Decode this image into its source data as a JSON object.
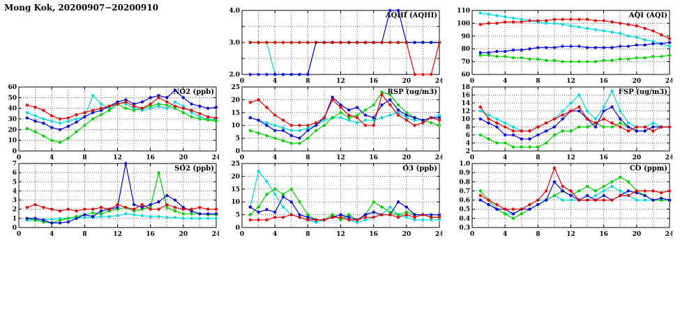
{
  "title": "Mong Kok, 20200907−20200910",
  "hours": [
    1,
    2,
    3,
    4,
    5,
    6,
    7,
    8,
    9,
    10,
    11,
    12,
    13,
    14,
    15,
    16,
    17,
    18,
    19,
    20,
    21,
    22,
    23,
    24
  ],
  "axes": {
    "xlim": [
      0,
      24
    ],
    "xticks": [
      0,
      4,
      8,
      12,
      16,
      20,
      24
    ],
    "x_minor_step": 2
  },
  "colors": {
    "red": "#dd0000",
    "blue": "#0000d0",
    "green": "#00cc00",
    "cyan": "#00d8d8"
  },
  "chart_data": [
    {
      "id": "aqhi",
      "type": "line",
      "title": "AQHI (AQHI)",
      "ylim": [
        2,
        4
      ],
      "yticks": [
        2,
        2.5,
        3,
        3.5,
        4
      ],
      "ytick_labels": [
        "2.0",
        "",
        "3.0",
        "",
        "4.0"
      ],
      "series": [
        {
          "name": "cyan",
          "values": [
            3,
            3,
            3,
            2,
            2,
            2,
            2,
            2,
            3,
            3,
            3,
            3,
            3,
            3,
            3,
            3,
            3,
            3,
            3,
            3,
            3,
            3,
            3,
            3
          ]
        },
        {
          "name": "green",
          "values": [
            3,
            3,
            3,
            3,
            3,
            3,
            3,
            3,
            3,
            3,
            3,
            3,
            3,
            3,
            3,
            3,
            3,
            3,
            3,
            3,
            3,
            3,
            3,
            3
          ]
        },
        {
          "name": "blue",
          "values": [
            2,
            2,
            2,
            2,
            2,
            2,
            2,
            2,
            3,
            3,
            3,
            3,
            3,
            3,
            3,
            3,
            3,
            4,
            4,
            3,
            3,
            3,
            3,
            3
          ]
        },
        {
          "name": "red",
          "values": [
            3,
            3,
            3,
            3,
            3,
            3,
            3,
            3,
            3,
            3,
            3,
            3,
            3,
            3,
            3,
            3,
            3,
            3,
            3,
            3,
            2,
            2,
            2,
            3
          ]
        }
      ]
    },
    {
      "id": "aqi",
      "type": "line",
      "title": "AQI (AQI)",
      "ylim": [
        60,
        110
      ],
      "yticks": [
        60,
        70,
        80,
        90,
        100,
        110
      ],
      "ytick_labels": [
        "60",
        "70",
        "80",
        "90",
        "100",
        "110"
      ],
      "series": [
        {
          "name": "cyan",
          "values": [
            108,
            107,
            106,
            105,
            104,
            103,
            102,
            101,
            100,
            100,
            99,
            98,
            97,
            96,
            95,
            94,
            93,
            92,
            90,
            89,
            87,
            86,
            84,
            82
          ]
        },
        {
          "name": "green",
          "values": [
            75,
            75,
            74,
            74,
            73,
            73,
            72,
            72,
            71,
            71,
            70,
            70,
            70,
            70,
            70,
            71,
            71,
            72,
            72,
            73,
            73,
            74,
            74,
            75
          ]
        },
        {
          "name": "blue",
          "values": [
            77,
            77,
            78,
            78,
            79,
            79,
            80,
            81,
            81,
            81,
            82,
            82,
            82,
            81,
            81,
            81,
            81,
            82,
            82,
            83,
            83,
            84,
            84,
            85
          ]
        },
        {
          "name": "red",
          "values": [
            99,
            100,
            100,
            101,
            101,
            101,
            102,
            102,
            102,
            103,
            103,
            103,
            103,
            103,
            102,
            102,
            101,
            100,
            99,
            98,
            96,
            94,
            91,
            88
          ]
        }
      ]
    },
    {
      "id": "no2",
      "type": "line",
      "title": "NO2 (ppb)",
      "ylim": [
        0,
        60
      ],
      "yticks": [
        0,
        10,
        20,
        30,
        40,
        50,
        60
      ],
      "ytick_labels": [
        "0",
        "10",
        "20",
        "30",
        "40",
        "50",
        "60"
      ],
      "series": [
        {
          "name": "cyan",
          "values": [
            36,
            33,
            30,
            28,
            26,
            28,
            30,
            32,
            52,
            44,
            40,
            45,
            44,
            40,
            38,
            40,
            42,
            40,
            46,
            42,
            36,
            32,
            30,
            29
          ]
        },
        {
          "name": "green",
          "values": [
            21,
            18,
            14,
            10,
            8,
            12,
            18,
            24,
            30,
            34,
            38,
            44,
            40,
            38,
            40,
            42,
            44,
            43,
            40,
            36,
            32,
            30,
            29,
            28
          ]
        },
        {
          "name": "blue",
          "values": [
            31,
            28,
            26,
            22,
            20,
            23,
            27,
            32,
            36,
            38,
            42,
            46,
            48,
            44,
            46,
            50,
            52,
            50,
            57,
            50,
            44,
            42,
            40,
            41
          ]
        },
        {
          "name": "red",
          "values": [
            43,
            41,
            38,
            33,
            30,
            31,
            34,
            36,
            38,
            40,
            42,
            44,
            46,
            42,
            40,
            44,
            50,
            46,
            42,
            40,
            38,
            35,
            32,
            31
          ]
        }
      ]
    },
    {
      "id": "rsp",
      "type": "line",
      "title": "RSP (ug/m3)",
      "ylim": [
        0,
        25
      ],
      "yticks": [
        0,
        5,
        10,
        15,
        20,
        25
      ],
      "ytick_labels": [
        "0",
        "5",
        "10",
        "15",
        "20",
        "25"
      ],
      "series": [
        {
          "name": "cyan",
          "values": [
            13,
            12,
            11,
            10,
            9,
            8,
            8,
            9,
            10,
            12,
            13,
            13,
            12,
            11,
            12,
            12,
            13,
            14,
            15,
            13,
            12,
            12,
            13,
            14
          ]
        },
        {
          "name": "green",
          "values": [
            8,
            7,
            6,
            5,
            4,
            3,
            3,
            5,
            8,
            10,
            13,
            15,
            13,
            14,
            16,
            18,
            23,
            22,
            18,
            15,
            13,
            12,
            11,
            10
          ]
        },
        {
          "name": "blue",
          "values": [
            13,
            12,
            10,
            8,
            8,
            6,
            5,
            8,
            10,
            13,
            21,
            18,
            16,
            17,
            14,
            13,
            18,
            20,
            16,
            14,
            13,
            12,
            13,
            13
          ]
        },
        {
          "name": "red",
          "values": [
            19,
            20,
            17,
            14,
            12,
            10,
            10,
            10,
            11,
            13,
            20,
            17,
            14,
            13,
            10,
            10,
            22,
            18,
            14,
            12,
            10,
            11,
            13,
            12
          ]
        }
      ]
    },
    {
      "id": "fsp",
      "type": "line",
      "title": "FSP (ug/m3)",
      "ylim": [
        2,
        18
      ],
      "yticks": [
        2,
        4,
        6,
        8,
        10,
        12,
        14,
        16,
        18
      ],
      "ytick_labels": [
        "2",
        "4",
        "6",
        "8",
        "10",
        "12",
        "14",
        "16",
        "18"
      ],
      "series": [
        {
          "name": "cyan",
          "values": [
            12,
            11,
            10,
            9,
            8,
            7,
            7,
            8,
            9,
            10,
            12,
            14,
            16,
            12,
            10,
            13,
            17,
            12,
            9,
            8,
            8,
            9,
            8,
            8
          ]
        },
        {
          "name": "green",
          "values": [
            6,
            5,
            4,
            4,
            3,
            3,
            3,
            3,
            4,
            6,
            7,
            7,
            8,
            8,
            9,
            8,
            8,
            9,
            8,
            7,
            7,
            8,
            8,
            8
          ]
        },
        {
          "name": "blue",
          "values": [
            10,
            9,
            8,
            6,
            6,
            5,
            5,
            6,
            7,
            8,
            10,
            12,
            12,
            10,
            8,
            12,
            13,
            10,
            8,
            7,
            7,
            8,
            8,
            8
          ]
        },
        {
          "name": "red",
          "values": [
            13,
            10,
            9,
            8,
            7,
            7,
            7,
            8,
            9,
            10,
            11,
            12,
            13,
            10,
            9,
            10,
            9,
            8,
            7,
            8,
            8,
            7,
            8,
            8
          ]
        }
      ]
    },
    {
      "id": "so2",
      "type": "line",
      "title": "SO2 (ppb)",
      "ylim": [
        0,
        7
      ],
      "yticks": [
        0,
        1,
        2,
        3,
        4,
        5,
        6,
        7
      ],
      "ytick_labels": [
        "0",
        "1",
        "2",
        "3",
        "4",
        "5",
        "6",
        "7"
      ],
      "series": [
        {
          "name": "cyan",
          "values": [
            0.8,
            0.8,
            0.9,
            0.9,
            1,
            1,
            1,
            1.1,
            1.1,
            1.2,
            1.2,
            1.3,
            1.5,
            1.4,
            1.3,
            1.2,
            1.2,
            1.1,
            1.1,
            1,
            1,
            1,
            1,
            1
          ]
        },
        {
          "name": "green",
          "values": [
            1,
            0.8,
            0.6,
            0.5,
            0.8,
            1,
            1.2,
            1.4,
            1.6,
            1.5,
            1.8,
            2,
            2.2,
            1.8,
            2,
            2.2,
            6,
            2.2,
            1.8,
            1.5,
            1.5,
            1.5,
            1.4,
            1.4
          ]
        },
        {
          "name": "blue",
          "values": [
            1,
            1,
            0.8,
            0.5,
            0.5,
            0.6,
            1,
            1.4,
            1.2,
            1.8,
            2,
            2.2,
            7,
            2.5,
            2.2,
            2.5,
            2.8,
            3.5,
            3,
            2.2,
            1.8,
            1.5,
            1.5,
            1.5
          ]
        },
        {
          "name": "red",
          "values": [
            2.2,
            2.5,
            2.2,
            2,
            1.8,
            2,
            1.8,
            2,
            2,
            2.2,
            2,
            2.5,
            2.2,
            2,
            2.5,
            2,
            2,
            2.5,
            2.2,
            2,
            2,
            2.2,
            2,
            2
          ]
        }
      ]
    },
    {
      "id": "o3",
      "type": "line",
      "title": "O3 (ppb)",
      "ylim": [
        0,
        25
      ],
      "yticks": [
        0,
        5,
        10,
        15,
        20,
        25
      ],
      "ytick_labels": [
        "0",
        "5",
        "10",
        "15",
        "20",
        "25"
      ],
      "series": [
        {
          "name": "cyan",
          "values": [
            8,
            22,
            18,
            13,
            8,
            5,
            4,
            3,
            2,
            3,
            4,
            5,
            3,
            2,
            3,
            4,
            5,
            8,
            5,
            4,
            3,
            3,
            3,
            3
          ]
        },
        {
          "name": "green",
          "values": [
            5,
            8,
            13,
            15,
            13,
            15,
            10,
            5,
            3,
            3,
            5,
            3,
            5,
            3,
            5,
            10,
            8,
            6,
            5,
            6,
            5,
            5,
            4,
            4
          ]
        },
        {
          "name": "blue",
          "values": [
            8,
            6,
            7,
            6,
            12,
            10,
            5,
            4,
            3,
            3,
            4,
            5,
            4,
            3,
            5,
            6,
            5,
            5,
            10,
            8,
            5,
            5,
            5,
            5
          ]
        },
        {
          "name": "red",
          "values": [
            3,
            3,
            3,
            4,
            4,
            5,
            4,
            3,
            3,
            3,
            4,
            4,
            3,
            3,
            4,
            4,
            5,
            5,
            4,
            5,
            4,
            5,
            4,
            4
          ]
        }
      ]
    },
    {
      "id": "co",
      "type": "line",
      "title": "CO (ppm)",
      "ylim": [
        0.3,
        1.0
      ],
      "yticks": [
        0.3,
        0.4,
        0.5,
        0.6,
        0.7,
        0.8,
        0.9,
        1.0
      ],
      "ytick_labels": [
        "0.3",
        "0.4",
        "0.5",
        "0.6",
        "0.7",
        "0.8",
        "0.9",
        "1.0"
      ],
      "series": [
        {
          "name": "cyan",
          "values": [
            0.6,
            0.55,
            0.5,
            0.45,
            0.45,
            0.5,
            0.55,
            0.6,
            0.6,
            0.65,
            0.6,
            0.6,
            0.6,
            0.6,
            0.65,
            0.7,
            0.75,
            0.7,
            0.65,
            0.6,
            0.6,
            0.6,
            0.6,
            0.6
          ]
        },
        {
          "name": "green",
          "values": [
            0.7,
            0.6,
            0.5,
            0.45,
            0.4,
            0.45,
            0.5,
            0.55,
            0.6,
            0.65,
            0.7,
            0.65,
            0.7,
            0.75,
            0.7,
            0.75,
            0.8,
            0.85,
            0.8,
            0.7,
            0.65,
            0.6,
            0.6,
            0.6
          ]
        },
        {
          "name": "blue",
          "values": [
            0.6,
            0.55,
            0.5,
            0.5,
            0.45,
            0.5,
            0.5,
            0.55,
            0.6,
            0.8,
            0.7,
            0.65,
            0.6,
            0.65,
            0.6,
            0.65,
            0.6,
            0.65,
            0.7,
            0.68,
            0.65,
            0.6,
            0.62,
            0.6
          ]
        },
        {
          "name": "red",
          "values": [
            0.65,
            0.6,
            0.55,
            0.5,
            0.5,
            0.5,
            0.55,
            0.6,
            0.7,
            0.95,
            0.75,
            0.7,
            0.6,
            0.6,
            0.6,
            0.6,
            0.6,
            0.65,
            0.65,
            0.7,
            0.7,
            0.7,
            0.68,
            0.7
          ]
        }
      ]
    }
  ]
}
